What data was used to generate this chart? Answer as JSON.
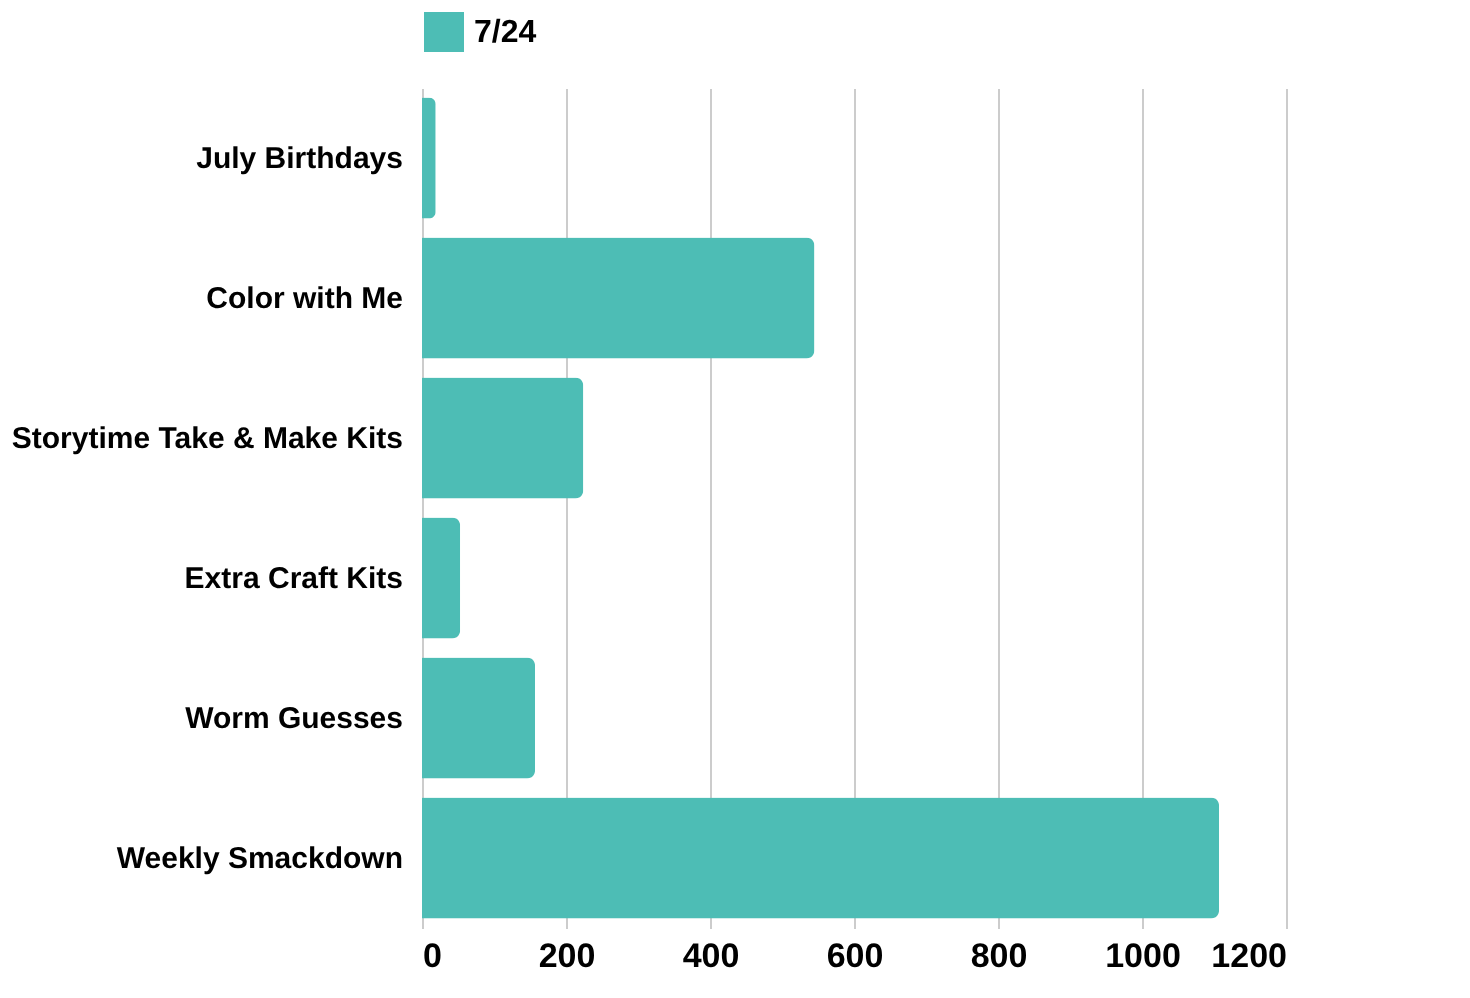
{
  "chart_data": {
    "type": "bar",
    "orientation": "horizontal",
    "categories": [
      "July Birthdays",
      "Color with Me",
      "Storytime Take & Make Kits",
      "Extra Craft Kits",
      "Worm Guesses",
      "Weekly Smackdown"
    ],
    "series": [
      {
        "name": "7/24",
        "color": "#4dbdb5",
        "values": [
          19,
          545,
          224,
          53,
          157,
          1107
        ]
      }
    ],
    "xlim": [
      0,
      1200
    ],
    "xticks": [
      0,
      200,
      400,
      600,
      800,
      1000,
      1200
    ],
    "grid": "x",
    "legend": "top"
  }
}
